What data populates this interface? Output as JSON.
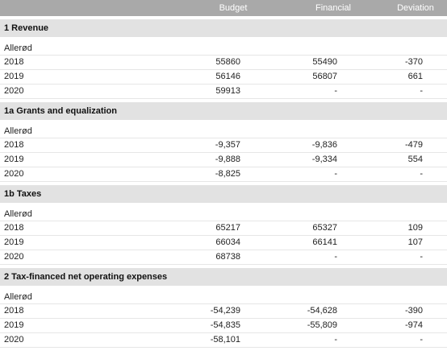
{
  "columns": {
    "budget": "Budget",
    "financial": "Financial",
    "deviation": "Deviation"
  },
  "sections": [
    {
      "title": "1 Revenue",
      "municipality": "Allerød",
      "rows": [
        {
          "year": "2018",
          "budget": "55860",
          "financial": "55490",
          "deviation": "-370"
        },
        {
          "year": "2019",
          "budget": "56146",
          "financial": "56807",
          "deviation": "661"
        },
        {
          "year": "2020",
          "budget": "59913",
          "financial": "-",
          "deviation": "-"
        }
      ]
    },
    {
      "title": "1a Grants and equalization",
      "municipality": "Allerød",
      "rows": [
        {
          "year": "2018",
          "budget": "-9,357",
          "financial": "-9,836",
          "deviation": "-479"
        },
        {
          "year": "2019",
          "budget": "-9,888",
          "financial": "-9,334",
          "deviation": "554"
        },
        {
          "year": "2020",
          "budget": "-8,825",
          "financial": "-",
          "deviation": "-"
        }
      ]
    },
    {
      "title": "1b Taxes",
      "municipality": "Allerød",
      "rows": [
        {
          "year": "2018",
          "budget": "65217",
          "financial": "65327",
          "deviation": "109"
        },
        {
          "year": "2019",
          "budget": "66034",
          "financial": "66141",
          "deviation": "107"
        },
        {
          "year": "2020",
          "budget": "68738",
          "financial": "-",
          "deviation": "-"
        }
      ]
    },
    {
      "title": "2 Tax-financed net operating expenses",
      "municipality": "Allerød",
      "rows": [
        {
          "year": "2018",
          "budget": "-54,239",
          "financial": "-54,628",
          "deviation": "-390"
        },
        {
          "year": "2019",
          "budget": "-54,835",
          "financial": "-55,809",
          "deviation": "-974"
        },
        {
          "year": "2020",
          "budget": "-58,101",
          "financial": "-",
          "deviation": "-"
        }
      ]
    }
  ]
}
